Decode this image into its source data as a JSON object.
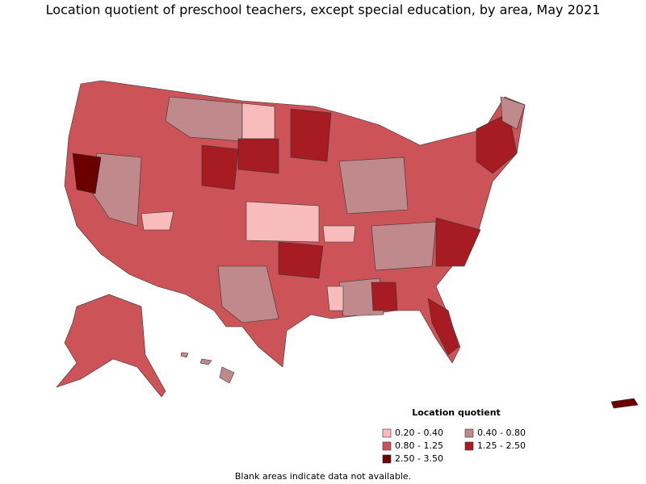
{
  "title": "Location quotient of preschool teachers, except special education, by area, May 2021",
  "legend": {
    "title": "Location quotient",
    "items": [
      {
        "label": "0.20 - 0.40",
        "color": "#f8bcbc"
      },
      {
        "label": "0.40 - 0.80",
        "color": "#c08a8c"
      },
      {
        "label": "0.80 - 1.25",
        "color": "#cc5458"
      },
      {
        "label": "1.25 - 2.50",
        "color": "#a61c22"
      },
      {
        "label": "2.50 - 3.50",
        "color": "#6a0000"
      }
    ]
  },
  "note": "Blank areas indicate data not available."
}
